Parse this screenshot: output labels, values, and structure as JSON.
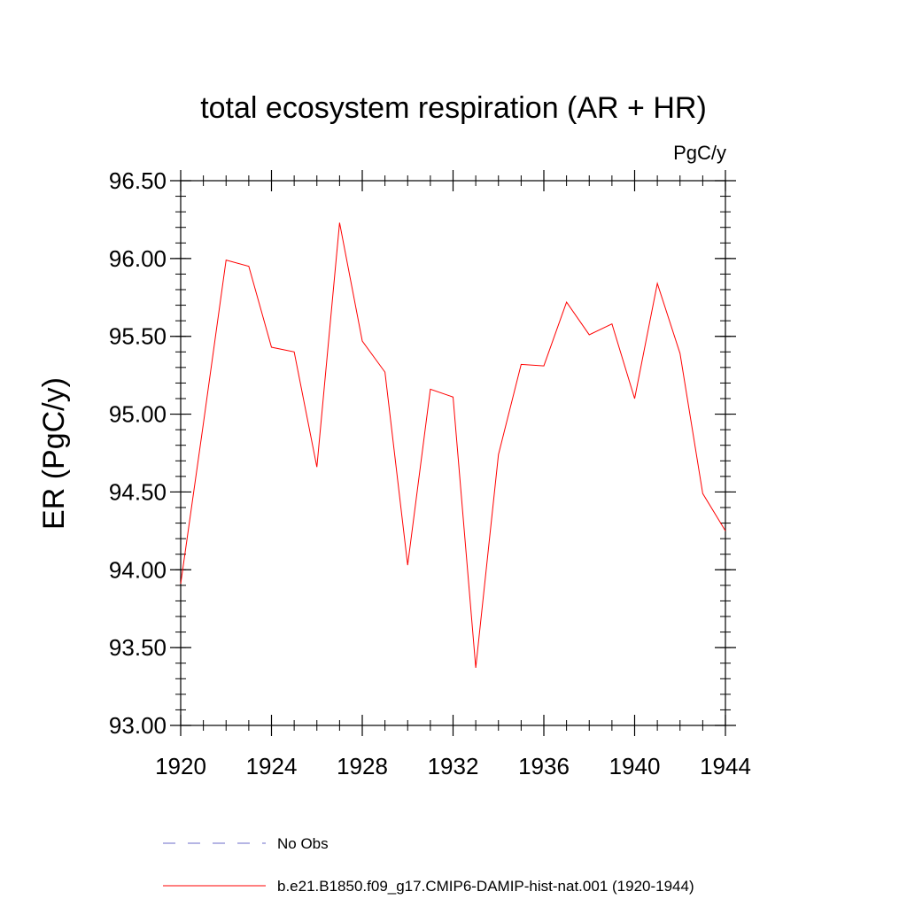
{
  "chart_data": {
    "type": "line",
    "title": "total ecosystem respiration (AR + HR)",
    "units_label": "PgC/y",
    "xlabel": "",
    "ylabel": "ER  (PgC/y)",
    "xlim": [
      1920,
      1944
    ],
    "ylim": [
      93.0,
      96.5
    ],
    "x_ticks": [
      1920,
      1924,
      1928,
      1932,
      1936,
      1940,
      1944
    ],
    "x_tick_labels": [
      "1920",
      "1924",
      "1928",
      "1932",
      "1936",
      "1940",
      "1944"
    ],
    "y_ticks": [
      93.0,
      93.5,
      94.0,
      94.5,
      95.0,
      95.5,
      96.0,
      96.5
    ],
    "y_tick_labels": [
      "93.00",
      "93.50",
      "94.00",
      "94.50",
      "95.00",
      "95.50",
      "96.00",
      "96.50"
    ],
    "grid": false,
    "legend_position": "bottom",
    "series": [
      {
        "name": "No Obs",
        "color": "#6b6bc8",
        "style": "dashed",
        "x": [],
        "y": []
      },
      {
        "name": "b.e21.B1850.f09_g17.CMIP6-DAMIP-hist-nat.001 (1920-1944)",
        "color": "#ff0000",
        "style": "solid",
        "x": [
          1920,
          1921,
          1922,
          1923,
          1924,
          1925,
          1926,
          1927,
          1928,
          1929,
          1930,
          1931,
          1932,
          1933,
          1934,
          1935,
          1936,
          1937,
          1938,
          1939,
          1940,
          1941,
          1942,
          1943,
          1944
        ],
        "y": [
          93.91,
          94.94,
          95.99,
          95.95,
          95.43,
          95.4,
          94.66,
          96.23,
          95.47,
          95.27,
          94.03,
          95.16,
          95.11,
          93.37,
          94.74,
          95.32,
          95.31,
          95.72,
          95.51,
          95.58,
          95.1,
          95.84,
          95.39,
          94.49,
          94.25
        ]
      }
    ]
  }
}
